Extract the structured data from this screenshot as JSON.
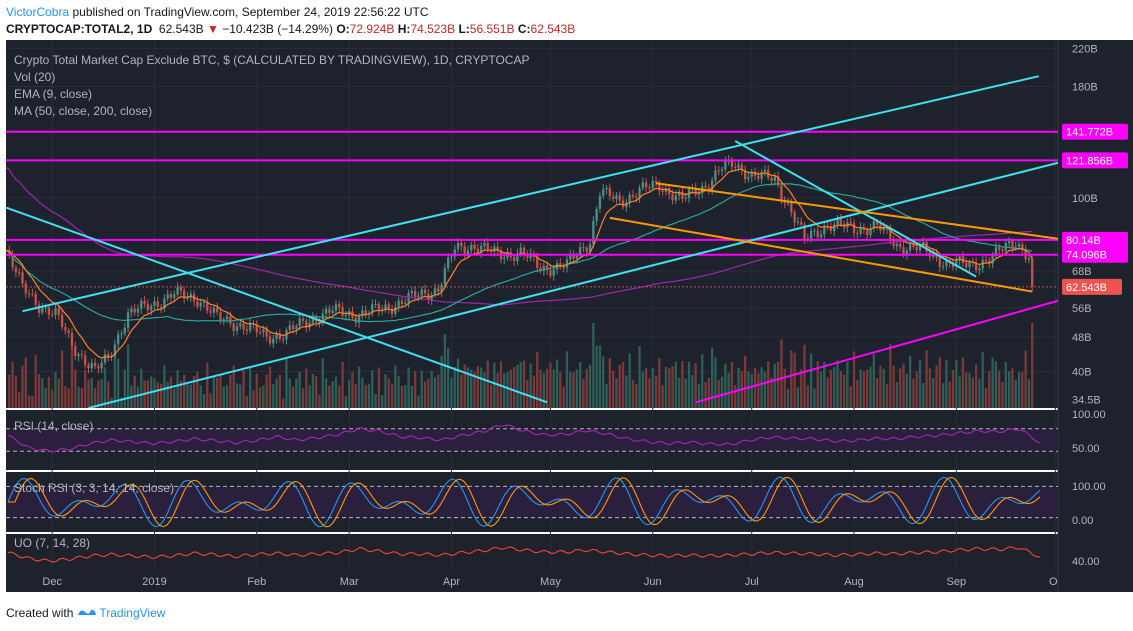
{
  "header": {
    "author": "VictorCobra",
    "published": " published on TradingView.com, September 24, 2019 22:56:22 UTC",
    "symbol": "CRYPTOCAP:TOTAL2, 1D",
    "price": "62.543B",
    "arrow": "▼",
    "change": "−10.423B (−14.29%)",
    "o_label": "O:",
    "o_value": "72.924B",
    "h_label": "H:",
    "h_value": "74.523B",
    "l_label": "L:",
    "l_value": "56.551B",
    "c_label": "C:",
    "c_value": "62.543B"
  },
  "legend": {
    "title": "Crypto Total Market Cap Exclude BTC, $ (CALCULATED BY TRADINGVIEW), 1D, CRYPTOCAP",
    "vol": "Vol (20)",
    "ema": "EMA (9, close)",
    "ma": "MA (50, close, 200, close)"
  },
  "panes": {
    "rsi_label": "RSI (14, close)",
    "stoch_label": "Stoch RSI (3, 3, 14, 14, close)",
    "uo_label": "UO (7, 14, 28)"
  },
  "footer": {
    "created": "Created with",
    "brand": "TradingView"
  },
  "colors": {
    "background": "#ffffff",
    "plot": "#1e222d",
    "up": "#4f8e84",
    "down": "#c25548",
    "magenta": "#ff00ff",
    "cyan": "#40e0f0",
    "orange": "#ff9800",
    "ema": "#ff7f27",
    "ma50": "#26a69a",
    "ma200": "#9c27b0",
    "rsi": "#9c27b0"
  },
  "chart_data": {
    "type": "candlestick",
    "axis_labels": {
      "price_ticks": [
        "220B",
        "180B",
        "141.772B",
        "121.856B",
        "100B",
        "80.14B",
        "74.096B",
        "68B",
        "62.543B",
        "56B",
        "48B",
        "40B",
        "34.5B"
      ],
      "rsi_ticks": [
        "100.00",
        "50.00"
      ],
      "stoch_ticks": [
        "100.00",
        "0.00"
      ],
      "uo_ticks": [
        "40.00"
      ],
      "time_ticks": [
        "Dec",
        "2019",
        "Feb",
        "Mar",
        "Apr",
        "May",
        "Jun",
        "Jul",
        "Aug",
        "Sep",
        "O"
      ]
    },
    "price_scale": "log",
    "price_range": [
      33,
      230
    ],
    "horizontal_levels": [
      {
        "value": 141.772,
        "label": "141.772B"
      },
      {
        "value": 121.856,
        "label": "121.856B"
      },
      {
        "value": 80.14,
        "label": "80.14B"
      },
      {
        "value": 74.096,
        "label": "74.096B"
      }
    ],
    "last_close": {
      "value": 62.543,
      "label": "62.543B"
    },
    "price_path": [
      {
        "date": "2018-11-17",
        "close": 76
      },
      {
        "date": "2018-11-22",
        "close": 62
      },
      {
        "date": "2018-11-27",
        "close": 57
      },
      {
        "date": "2018-12-02",
        "close": 54
      },
      {
        "date": "2018-12-07",
        "close": 46
      },
      {
        "date": "2018-12-14",
        "close": 40
      },
      {
        "date": "2018-12-18",
        "close": 43
      },
      {
        "date": "2018-12-24",
        "close": 54
      },
      {
        "date": "2018-12-31",
        "close": 57
      },
      {
        "date": "2019-01-07",
        "close": 60
      },
      {
        "date": "2019-01-14",
        "close": 59
      },
      {
        "date": "2019-01-20",
        "close": 53
      },
      {
        "date": "2019-01-28",
        "close": 51
      },
      {
        "date": "2019-02-04",
        "close": 48
      },
      {
        "date": "2019-02-10",
        "close": 49
      },
      {
        "date": "2019-02-18",
        "close": 53
      },
      {
        "date": "2019-02-24",
        "close": 55
      },
      {
        "date": "2019-03-04",
        "close": 54
      },
      {
        "date": "2019-03-12",
        "close": 56
      },
      {
        "date": "2019-03-20",
        "close": 59
      },
      {
        "date": "2019-03-28",
        "close": 62
      },
      {
        "date": "2019-04-02",
        "close": 76
      },
      {
        "date": "2019-04-08",
        "close": 78
      },
      {
        "date": "2019-04-15",
        "close": 74
      },
      {
        "date": "2019-04-22",
        "close": 75
      },
      {
        "date": "2019-04-28",
        "close": 69
      },
      {
        "date": "2019-05-06",
        "close": 70
      },
      {
        "date": "2019-05-13",
        "close": 80
      },
      {
        "date": "2019-05-16",
        "close": 103
      },
      {
        "date": "2019-05-22",
        "close": 98
      },
      {
        "date": "2019-05-28",
        "close": 104
      },
      {
        "date": "2019-06-03",
        "close": 107
      },
      {
        "date": "2019-06-10",
        "close": 99
      },
      {
        "date": "2019-06-17",
        "close": 107
      },
      {
        "date": "2019-06-22",
        "close": 117
      },
      {
        "date": "2019-06-26",
        "close": 119
      },
      {
        "date": "2019-07-01",
        "close": 113
      },
      {
        "date": "2019-07-08",
        "close": 110
      },
      {
        "date": "2019-07-14",
        "close": 90
      },
      {
        "date": "2019-07-17",
        "close": 80
      },
      {
        "date": "2019-07-24",
        "close": 87
      },
      {
        "date": "2019-08-01",
        "close": 85
      },
      {
        "date": "2019-08-08",
        "close": 86
      },
      {
        "date": "2019-08-14",
        "close": 78
      },
      {
        "date": "2019-08-22",
        "close": 76
      },
      {
        "date": "2019-08-29",
        "close": 71
      },
      {
        "date": "2019-09-05",
        "close": 70
      },
      {
        "date": "2019-09-12",
        "close": 73
      },
      {
        "date": "2019-09-19",
        "close": 80
      },
      {
        "date": "2019-09-23",
        "close": 73
      },
      {
        "date": "2019-09-24",
        "close": 62.5
      }
    ],
    "trendlines": [
      {
        "name": "upper-channel",
        "color": "cyan",
        "from": {
          "date": "2018-11-22",
          "value": 55
        },
        "to": {
          "date": "2019-09-26",
          "value": 190
        }
      },
      {
        "name": "middle-channel",
        "color": "cyan",
        "from": {
          "date": "2018-12-12",
          "value": 33
        },
        "to": {
          "date": "2019-10-05",
          "value": 122
        }
      },
      {
        "name": "falling-line",
        "color": "cyan",
        "from": {
          "date": "2018-11-17",
          "value": 95
        },
        "to": {
          "date": "2019-04-30",
          "value": 34
        }
      },
      {
        "name": "peak-resistance",
        "color": "cyan",
        "from": {
          "date": "2019-06-26",
          "value": 135
        },
        "to": {
          "date": "2019-09-07",
          "value": 66
        }
      },
      {
        "name": "wedge-top",
        "color": "orange",
        "from": {
          "date": "2019-06-02",
          "value": 108
        },
        "to": {
          "date": "2019-10-05",
          "value": 80
        }
      },
      {
        "name": "wedge-bottom",
        "color": "orange",
        "from": {
          "date": "2019-05-19",
          "value": 90
        },
        "to": {
          "date": "2019-09-24",
          "value": 61
        }
      },
      {
        "name": "support",
        "color": "magenta",
        "from": {
          "date": "2019-06-14",
          "value": 34
        },
        "to": {
          "date": "2019-10-05",
          "value": 59
        }
      }
    ],
    "rsi_range": [
      0,
      100
    ],
    "rsi_bands": [
      30,
      70
    ],
    "rsi_path": [
      58,
      36,
      30,
      34,
      44,
      50,
      47,
      44,
      47,
      52,
      49,
      45,
      49,
      56,
      50,
      54,
      60,
      70,
      66,
      56,
      54,
      50,
      58,
      65,
      78,
      66,
      59,
      60,
      67,
      61,
      52,
      47,
      44,
      46,
      43,
      42,
      50,
      55,
      53,
      52,
      48,
      49,
      53,
      52,
      56,
      58,
      62,
      66,
      65,
      70,
      45
    ],
    "stoch_range": [
      0,
      100
    ],
    "uo_range": [
      30,
      80
    ],
    "uo_path": [
      54,
      45,
      41,
      44,
      49,
      51,
      49,
      47,
      49,
      53,
      51,
      48,
      51,
      53,
      50,
      52,
      54,
      60,
      56,
      52,
      52,
      50,
      54,
      57,
      62,
      58,
      55,
      55,
      58,
      55,
      52,
      50,
      49,
      50,
      49,
      50,
      52,
      54,
      53,
      52,
      50,
      51,
      53,
      52,
      54,
      55,
      58,
      60,
      59,
      62,
      47
    ]
  }
}
